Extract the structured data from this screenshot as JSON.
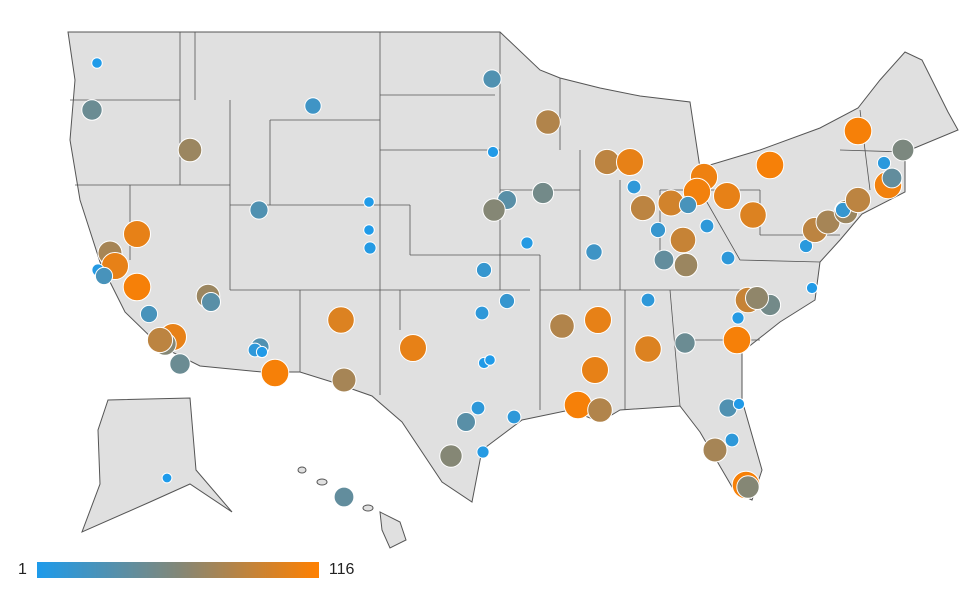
{
  "legend": {
    "min_label": "1",
    "max_label": "116",
    "min": 1,
    "max": 116,
    "colors": {
      "low": "#1e9beb",
      "mid": "#828778",
      "high": "#ff8000"
    }
  },
  "colors": {
    "land": "#e0e0e0",
    "border": "#555555"
  },
  "points": [
    2,
    45,
    20,
    30,
    80,
    70,
    3,
    85,
    105,
    10,
    112,
    55,
    8,
    110,
    40,
    112,
    108,
    110,
    105,
    95,
    85,
    15,
    10,
    100,
    25,
    90,
    40,
    70,
    10,
    20,
    5,
    35,
    60,
    50,
    15,
    2,
    2,
    5,
    30,
    105,
    75,
    105,
    5,
    25,
    112,
    70,
    35,
    25,
    105,
    60,
    85,
    45,
    30,
    10,
    3,
    112,
    100,
    75,
    105,
    3,
    2,
    15,
    10,
    80,
    105,
    105,
    112,
    80,
    100,
    45,
    10,
    90,
    50,
    65,
    5,
    112,
    3,
    8,
    85,
    75,
    70,
    15,
    85,
    30,
    3,
    75,
    10,
    112,
    60,
    10,
    35,
    10,
    5,
    60,
    40,
    1
  ]
}
